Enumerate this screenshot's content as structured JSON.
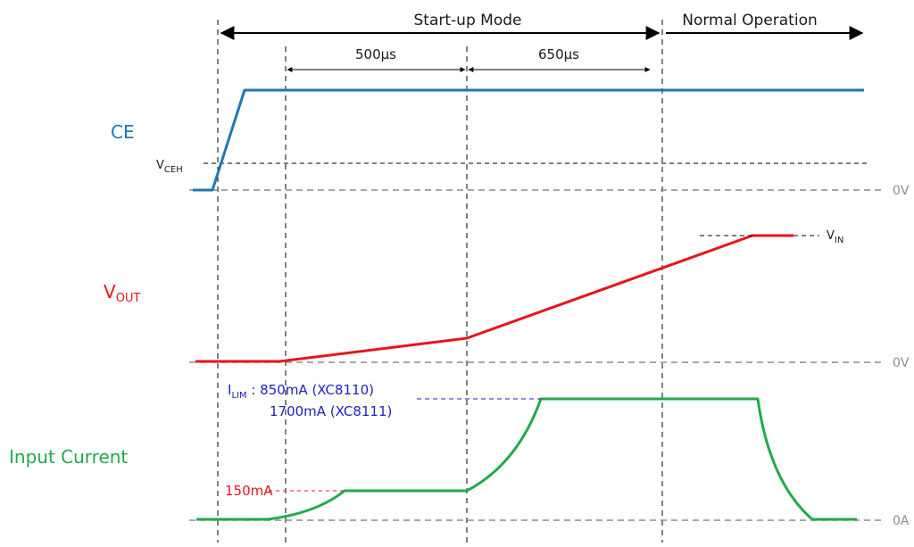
{
  "phases": {
    "startup": "Start-up Mode",
    "normal": "Normal Operation"
  },
  "durations": {
    "first": "500µs",
    "second": "650µs"
  },
  "signals": {
    "ce": {
      "label": "CE",
      "color": "#1f77b4"
    },
    "vout": {
      "label_main": "V",
      "label_sub": "OUT",
      "color": "#e8141c"
    },
    "input_current": {
      "label": "Input Current",
      "color": "#1faa4b"
    }
  },
  "annotations": {
    "vceh_main": "V",
    "vceh_sub": "CEH",
    "vin_main": "V",
    "vin_sub": "IN",
    "ilim_main": "I",
    "ilim_sub": "LIM",
    "ilim_line1": " : 850mA (XC8110)",
    "ilim_line2": "1700mA (XC8111)",
    "initial_current": "150mA",
    "ilim_color": "#1f1fbf",
    "initial_current_color": "#e8141c"
  },
  "zero_levels": {
    "ce": "0V",
    "vout": "0V",
    "current": "0A"
  }
}
